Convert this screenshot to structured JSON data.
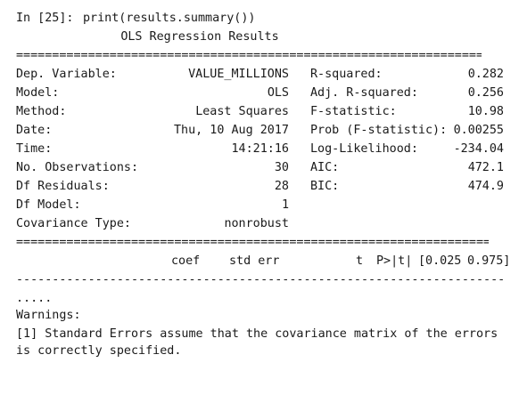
{
  "cell": {
    "prompt": "In [25]:",
    "code": "print(results.summary())"
  },
  "summary": {
    "title": "OLS Regression Results",
    "rule_double": "==============================================================================",
    "rule_single": "------------------------------------------------------------------------------",
    "rows": [
      {
        "left_label": "Dep. Variable:",
        "left_value": "VALUE_MILLIONS",
        "right_label": "R-squared:",
        "right_value": "0.282"
      },
      {
        "left_label": "Model:",
        "left_value": "OLS",
        "right_label": "Adj. R-squared:",
        "right_value": "0.256"
      },
      {
        "left_label": "Method:",
        "left_value": "Least Squares",
        "right_label": "F-statistic:",
        "right_value": "10.98"
      },
      {
        "left_label": "Date:",
        "left_value": "Thu, 10 Aug 2017",
        "right_label": "Prob (F-statistic):",
        "right_value": "0.00255"
      },
      {
        "left_label": "Time:",
        "left_value": "14:21:16",
        "right_label": "Log-Likelihood:",
        "right_value": "-234.04"
      },
      {
        "left_label": "No. Observations:",
        "left_value": "30",
        "right_label": "AIC:",
        "right_value": "472.1"
      },
      {
        "left_label": "Df Residuals:",
        "left_value": "28",
        "right_label": "BIC:",
        "right_value": "474.9"
      },
      {
        "left_label": "Df Model:",
        "left_value": "1",
        "right_label": "",
        "right_value": ""
      },
      {
        "left_label": "Covariance Type:",
        "left_value": "nonrobust",
        "right_label": "",
        "right_value": ""
      }
    ],
    "coef_header": {
      "coef": "coef",
      "std_err": "std err",
      "t": "t",
      "p": "P>|t|",
      "ci": "[0.025",
      "ci_hi": "0.975]"
    },
    "ellipsis": ".....",
    "warnings_label": "Warnings:",
    "warning_line1": "[1] Standard Errors assume that the covariance matrix of the errors",
    "warning_line2": "is correctly specified."
  }
}
